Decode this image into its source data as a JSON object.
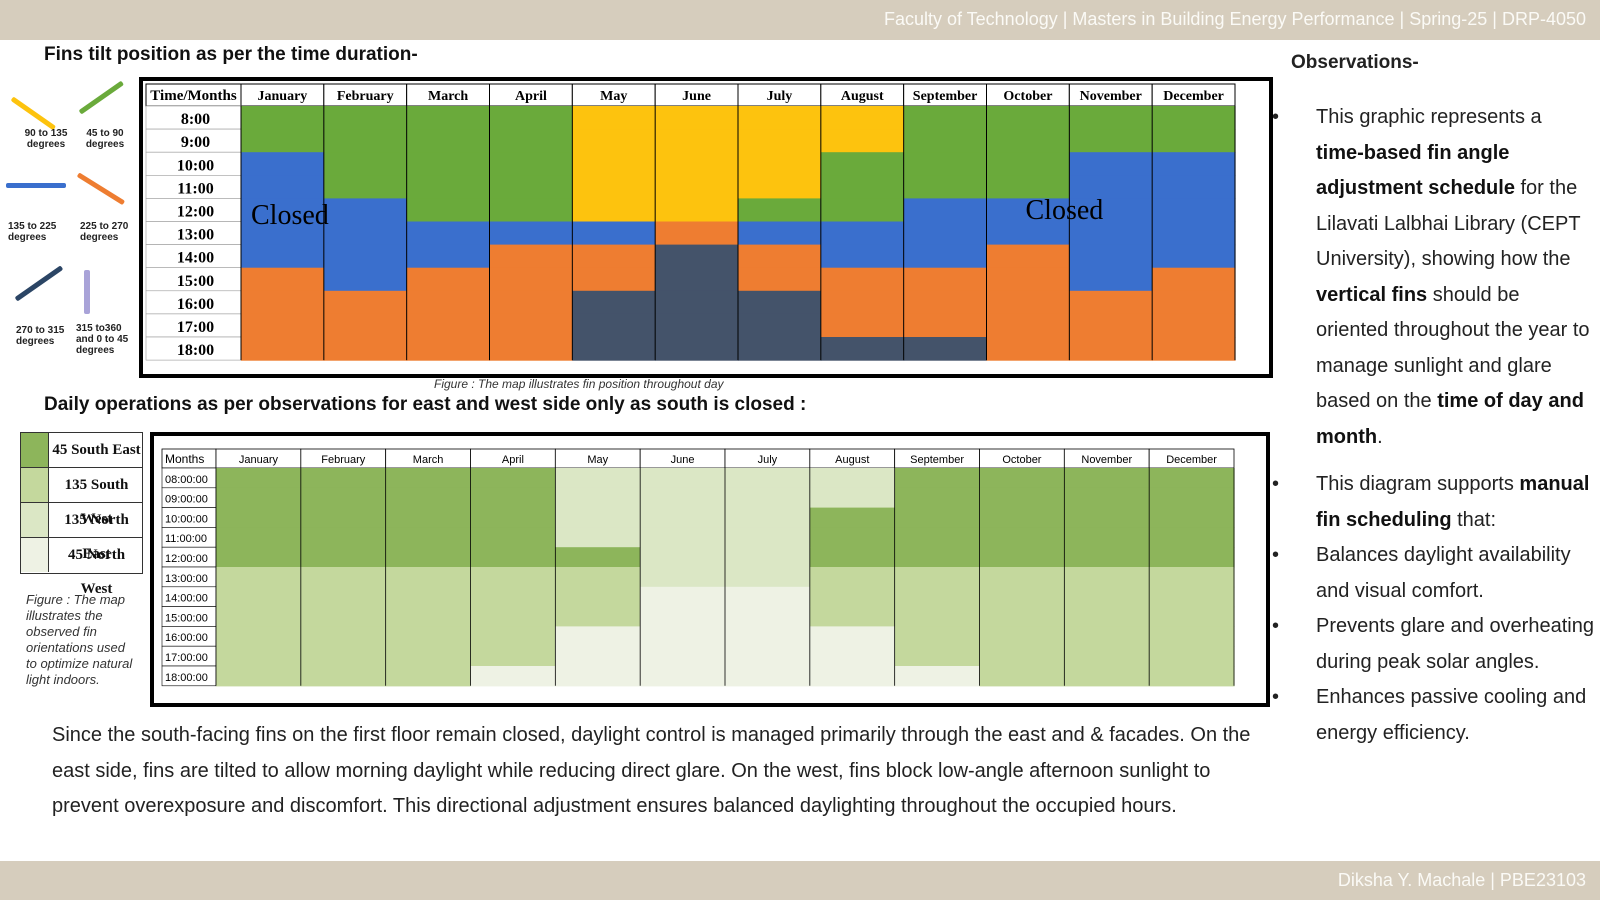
{
  "header": {
    "text": "Faculty of Technology  |  Masters in Building Energy Performance |  Spring-25 | DRP-4050"
  },
  "footer": {
    "text": "Diksha Y. Machale |  PBE23103"
  },
  "section1": {
    "title": "Fins tilt position as per the time duration-",
    "caption": "Figure : The map illustrates fin position throughout day"
  },
  "section2": {
    "title": "Daily operations as per observations for east and west side only as south is closed :",
    "caption": "Figure : The map illustrates the observed fin orientations used to optimize natural light indoors."
  },
  "colors": {
    "green": "#6aaa3b",
    "yellow": "#fdc30e",
    "blue": "#3a6fcd",
    "orange": "#ee7d31",
    "dark": "#44536a",
    "g1": "#8db55b",
    "g2": "#c4d89d",
    "g3": "#dbe7c5",
    "g4": "#eef2e4"
  },
  "legend1": [
    {
      "label": "90 to 135 degrees",
      "icon": "yellow-diagonal-line"
    },
    {
      "label": "45 to 90 degrees",
      "icon": "green-diagonal-line"
    },
    {
      "label": "135 to 225 degrees",
      "icon": "blue-horizontal-line"
    },
    {
      "label": "225 to 270 degrees",
      "icon": "orange-diagonal-line"
    },
    {
      "label": "270 to 315 degrees",
      "icon": "navy-diagonal-line"
    },
    {
      "label": "315 to360 and 0 to 45 degrees",
      "icon": "lavender-vertical-line"
    }
  ],
  "chart_data": [
    {
      "type": "heatmap",
      "title": "Fins tilt position as per the time duration-",
      "corner": "Time/Months",
      "months": [
        "January",
        "February",
        "March",
        "April",
        "May",
        "June",
        "July",
        "August",
        "September",
        "October",
        "November",
        "December"
      ],
      "times": [
        "8:00",
        "9:00",
        "10:00",
        "11:00",
        "12:00",
        "13:00",
        "14:00",
        "15:00",
        "16:00",
        "17:00",
        "18:00"
      ],
      "categories": [
        {
          "key": "G",
          "range": "45 to 90 degrees"
        },
        {
          "key": "Y",
          "range": "90 to 135 degrees"
        },
        {
          "key": "B",
          "range": "135 to 225 degrees"
        },
        {
          "key": "O",
          "range": "225 to 270 degrees"
        },
        {
          "key": "D",
          "range": "270 to 315 degrees"
        }
      ],
      "cells": [
        "GGGGYYYYGGGG",
        "GGGGYYYYGGGG",
        "BGGGYYYGGGBB",
        "BGGGYYYGGGBB",
        "BBGGYYGGBBBB",
        "BBBBBOBBBBBB",
        "BBBOODOBBOBB",
        "OBOOODOOOOBO",
        "OOOODDDOOOOO",
        "OOOODDDOOOOO",
        "OOOODDDDDOOO"
      ],
      "annotations": [
        "Closed",
        "Closed"
      ]
    },
    {
      "type": "heatmap",
      "title": "Daily operations as per observations for east and west side only as south is closed :",
      "corner": "Months",
      "months": [
        "January",
        "February",
        "March",
        "April",
        "May",
        "June",
        "July",
        "August",
        "September",
        "October",
        "November",
        "December"
      ],
      "times": [
        "08:00:00",
        "09:00:00",
        "10:00:00",
        "11:00:00",
        "12:00:00",
        "13:00:00",
        "14:00:00",
        "15:00:00",
        "16:00:00",
        "17:00:00",
        "18:00:00"
      ],
      "categories": [
        {
          "key": "1",
          "label": "45 South East"
        },
        {
          "key": "2",
          "label": "135 South West"
        },
        {
          "key": "3",
          "label": "135 North East"
        },
        {
          "key": "4",
          "label": "45 North West"
        }
      ],
      "cells": [
        "111133331111",
        "111133331111",
        "111133311111",
        "111133311111",
        "111113311111",
        "222223322222",
        "222224422222",
        "222224422222",
        "222244442222",
        "222244442222",
        "222444444222"
      ]
    }
  ],
  "legend2": [
    {
      "label": "45 South East",
      "color": "#8db55b"
    },
    {
      "label": "135 South West",
      "color": "#c4d89d"
    },
    {
      "label": "135 North East",
      "color": "#dbe7c5"
    },
    {
      "label": "45 North West",
      "color": "#eef2e4"
    }
  ],
  "paragraph": "Since the south-facing fins on the first floor remain closed, daylight control is managed primarily through the east and & facades. On the east side, fins are tilted to allow morning daylight while reducing direct glare. On the west, fins block low-angle afternoon sunlight to prevent overexposure and discomfort. This directional adjustment ensures balanced daylighting throughout the occupied hours.",
  "observations": {
    "title": "Observations-",
    "bullet1": {
      "t1": "This graphic represents a ",
      "b1": "time-based fin angle adjustment schedule",
      "t2": " for the Lilavati Lalbhai Library (CEPT University), showing how the ",
      "b2": "vertical fins",
      "t3": " should be oriented throughout the year to manage sunlight and glare based on the ",
      "b3": "time of day and month",
      "t4": "."
    },
    "bullet2": {
      "t1": "This diagram supports ",
      "b1": "manual fin scheduling",
      "t2": " that:"
    },
    "bullet3": "Balances daylight availability and visual comfort.",
    "bullet4": "Prevents glare and overheating during peak solar angles.",
    "bullet5": "Enhances passive cooling and energy efficiency.",
    "bullet_char": "•"
  }
}
